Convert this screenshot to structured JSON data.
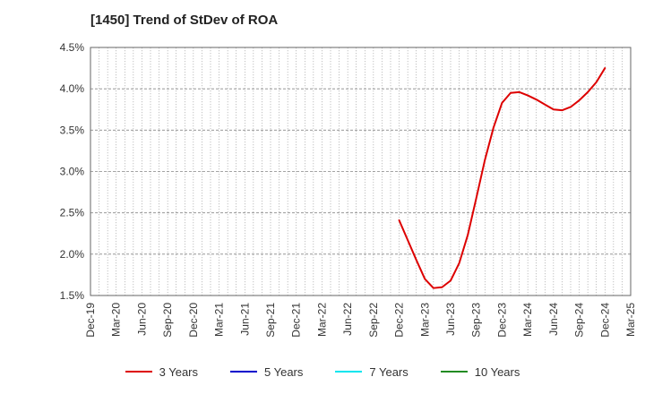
{
  "chart_data": {
    "type": "line",
    "title": "[1450]  Trend of StDev of ROA",
    "xlabel": "",
    "ylabel": "",
    "x_ticks": [
      "Dec-19",
      "Mar-20",
      "Jun-20",
      "Sep-20",
      "Dec-20",
      "Mar-21",
      "Jun-21",
      "Sep-21",
      "Dec-21",
      "Mar-22",
      "Jun-22",
      "Sep-22",
      "Dec-22",
      "Mar-23",
      "Jun-23",
      "Sep-23",
      "Dec-23",
      "Mar-24",
      "Jun-24",
      "Sep-24",
      "Dec-24",
      "Mar-25"
    ],
    "y_ticks": [
      "1.5%",
      "2.0%",
      "2.5%",
      "3.0%",
      "3.5%",
      "4.0%",
      "4.5%"
    ],
    "ylim": [
      1.5,
      4.5
    ],
    "grid": true,
    "legend_position": "bottom",
    "series": [
      {
        "name": "3 Years",
        "color": "#dd0000",
        "x": [
          "Dec-22",
          "Jan-23",
          "Feb-23",
          "Mar-23",
          "Apr-23",
          "May-23",
          "Jun-23",
          "Jul-23",
          "Aug-23",
          "Sep-23",
          "Oct-23",
          "Nov-23",
          "Dec-23",
          "Jan-24",
          "Feb-24",
          "Mar-24",
          "Apr-24",
          "May-24",
          "Jun-24",
          "Jul-24",
          "Aug-24",
          "Sep-24",
          "Oct-24",
          "Nov-24",
          "Dec-24"
        ],
        "values": [
          2.41,
          2.17,
          1.93,
          1.7,
          1.59,
          1.6,
          1.68,
          1.89,
          2.23,
          2.68,
          3.14,
          3.53,
          3.83,
          3.95,
          3.96,
          3.92,
          3.87,
          3.81,
          3.75,
          3.74,
          3.78,
          3.86,
          3.96,
          4.08,
          4.25
        ]
      },
      {
        "name": "5 Years",
        "color": "#0000cc",
        "x": [],
        "values": []
      },
      {
        "name": "7 Years",
        "color": "#00e5ee",
        "x": [],
        "values": []
      },
      {
        "name": "10 Years",
        "color": "#228b22",
        "x": [],
        "values": []
      }
    ]
  }
}
